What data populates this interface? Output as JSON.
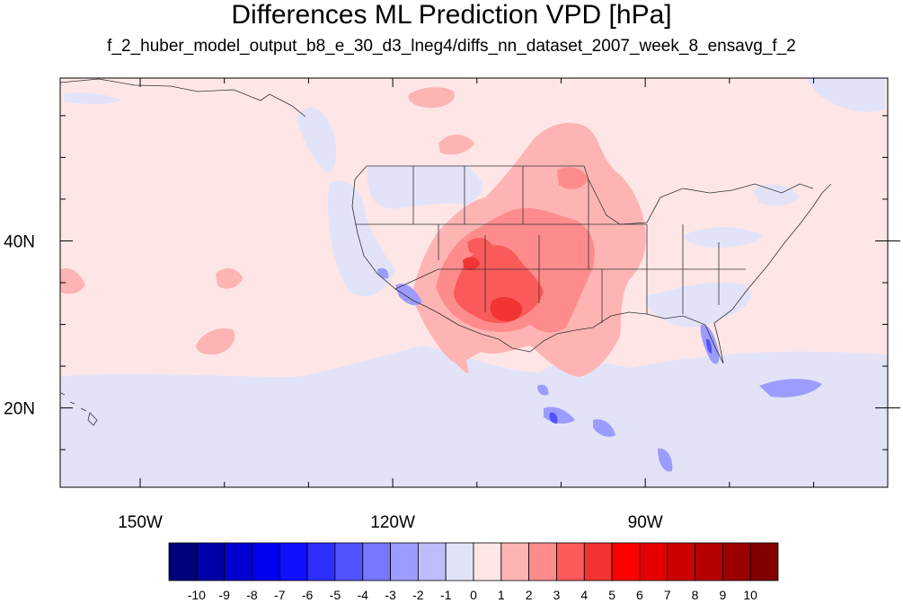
{
  "title": "Differences ML Prediction VPD [hPa]",
  "subtitle": "f_2_huber_model_output_b8_e_30_d3_lneg4/diffs_nn_dataset_2007_week_8_ensavg_f_2",
  "map": {
    "background_color": "#ffe6e6",
    "lon_labels": [
      {
        "lon": -150,
        "label": "150W"
      },
      {
        "lon": -120,
        "label": "120W"
      },
      {
        "lon": -90,
        "label": "90W"
      }
    ],
    "lat_labels": [
      {
        "lat": 40,
        "label": "40N"
      },
      {
        "lat": 20,
        "label": "20N"
      }
    ]
  },
  "colorbar": {
    "colors": [
      "#00007a",
      "#0000a8",
      "#0000d2",
      "#0000f0",
      "#1010ff",
      "#2e2eff",
      "#5252ff",
      "#7777ff",
      "#9c9cff",
      "#bdbdff",
      "#e3e3f8",
      "#ffe6e6",
      "#ffb4b4",
      "#ff8c8c",
      "#fa5a5a",
      "#f23434",
      "#ff0000",
      "#e40000",
      "#cc0000",
      "#b40000",
      "#9a0000",
      "#800000"
    ],
    "labels": [
      "-10",
      "-9",
      "-8",
      "-7",
      "-6",
      "-5",
      "-4",
      "-3",
      "-2",
      "-1",
      "0",
      "1",
      "2",
      "3",
      "4",
      "5",
      "6",
      "7",
      "8",
      "9",
      "10"
    ]
  }
}
